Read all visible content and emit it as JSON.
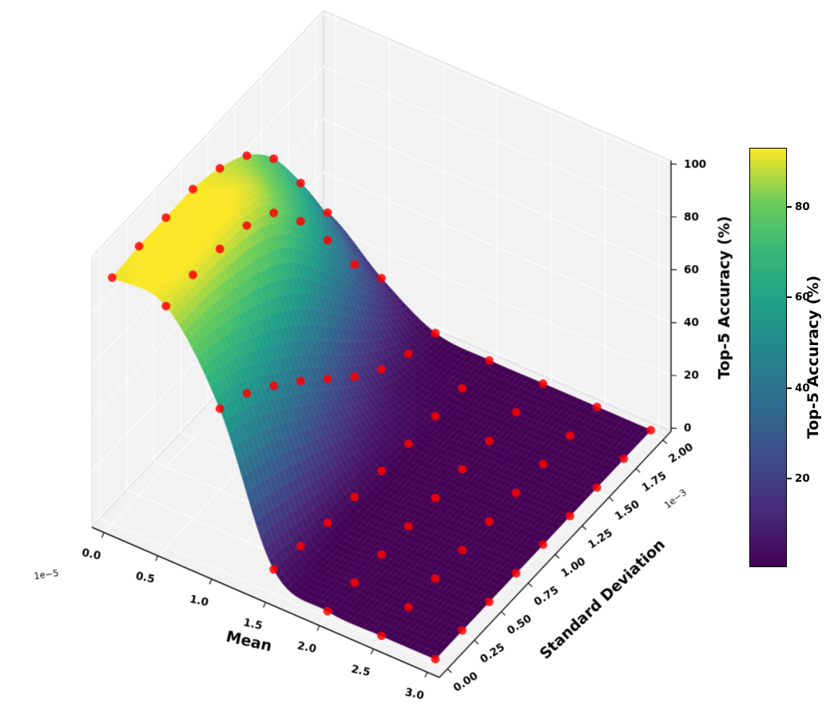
{
  "figure": {
    "background": "#ffffff"
  },
  "chart_data": {
    "type": "surface3d",
    "title": "",
    "x_axis": {
      "label": "Mean",
      "offset_text": "1e−5",
      "tick_labels": [
        "0.0",
        "0.5",
        "1.0",
        "1.5",
        "2.0",
        "2.5",
        "3.0"
      ],
      "values": [
        0,
        0.5,
        1.0,
        1.5,
        2.0,
        2.5,
        3.0
      ],
      "range": [
        0,
        3
      ]
    },
    "y_axis": {
      "label": "Standard Deviation",
      "offset_text": "1e−3",
      "tick_labels": [
        "0.00",
        "0.25",
        "0.50",
        "0.75",
        "1.00",
        "1.25",
        "1.50",
        "1.75",
        "2.00"
      ],
      "values": [
        0,
        0.25,
        0.5,
        0.75,
        1.0,
        1.25,
        1.5,
        1.75,
        2.0
      ],
      "range": [
        0,
        2
      ]
    },
    "z_axis": {
      "label": "Top-5 Accuracy (%)",
      "tick_labels": [
        "0",
        "20",
        "40",
        "60",
        "80",
        "100"
      ],
      "tick_values": [
        0,
        20,
        40,
        60,
        80,
        100
      ],
      "range": [
        0,
        100
      ]
    },
    "surface": {
      "note": "z[row][col] = Top-5 accuracy %, rows follow y_axis.values (std), cols follow x_axis.values (mean)",
      "z": [
        [
          92,
          90,
          60,
          8,
          1,
          0.5,
          0.5
        ],
        [
          93,
          91,
          55,
          6,
          1,
          0.5,
          0.5
        ],
        [
          93,
          90,
          47,
          4,
          0.8,
          0.5,
          0.5
        ],
        [
          93,
          88,
          38,
          3,
          0.7,
          0.5,
          0.5
        ],
        [
          90,
          82,
          28,
          2,
          0.6,
          0.5,
          0.5
        ],
        [
          84,
          68,
          18,
          1.5,
          0.6,
          0.5,
          0.5
        ],
        [
          72,
          50,
          10,
          1,
          0.5,
          0.5,
          0.5
        ],
        [
          52,
          30,
          5,
          0.8,
          0.5,
          0.5,
          0.5
        ],
        [
          30,
          14,
          2,
          0.5,
          0.5,
          0.5,
          0.5
        ]
      ]
    },
    "scatter": {
      "color": "#ff0000",
      "alpha": 0.85
    },
    "colormap": {
      "name": "viridis",
      "stops": [
        [
          0.0,
          68,
          1,
          84
        ],
        [
          0.125,
          72,
          40,
          120
        ],
        [
          0.25,
          62,
          74,
          137
        ],
        [
          0.375,
          49,
          104,
          142
        ],
        [
          0.5,
          38,
          130,
          142
        ],
        [
          0.625,
          31,
          158,
          137
        ],
        [
          0.75,
          53,
          183,
          121
        ],
        [
          0.875,
          110,
          206,
          88
        ],
        [
          1.0,
          253,
          231,
          37
        ]
      ]
    },
    "colorbar": {
      "label": "Top-5 Accuracy (%)",
      "tick_labels": [
        "20",
        "40",
        "60",
        "80"
      ],
      "tick_values": [
        20,
        40,
        60,
        80
      ],
      "vmin": 0.5,
      "vmax": 93
    },
    "panes": {
      "pane_color": "#f2f2f2",
      "pane_edge_color": "#d9d9de",
      "grid_color": "#ffffff",
      "axis_line_color": "#111111",
      "mesh_line_color": "rgba(255,255,255,0.15)"
    }
  }
}
